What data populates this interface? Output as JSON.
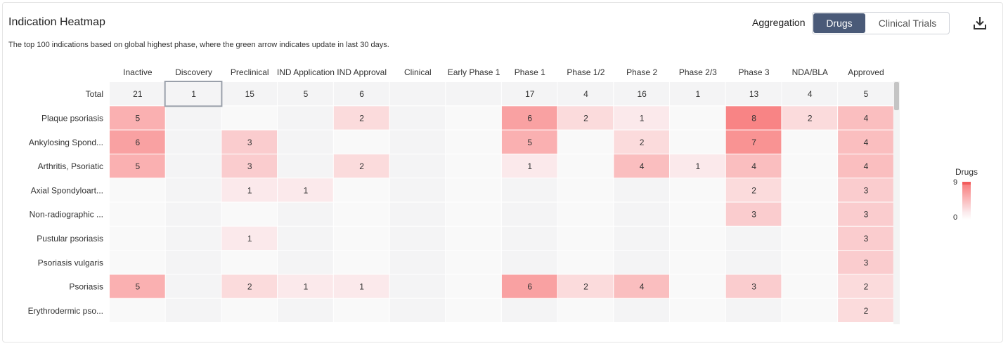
{
  "header": {
    "title": "Indication Heatmap",
    "subtitle": "The top 100 indications based on global highest phase, where the green arrow indicates update in last 30 days.",
    "aggregation_label": "Aggregation",
    "toggle": {
      "drugs": "Drugs",
      "trials": "Clinical Trials",
      "selected": "Drugs"
    },
    "download_icon": "download-icon"
  },
  "legend": {
    "title": "Drugs",
    "max": "9",
    "min": "0"
  },
  "colors": {
    "high": "#f87676",
    "low": "#fbe9eb",
    "empty_a": "#f4f4f5",
    "empty_b": "#f9f9f9",
    "accent": "#4a5a78"
  },
  "chart_data": {
    "type": "heatmap",
    "title": "Indication Heatmap",
    "columns": [
      "Inactive",
      "Discovery",
      "Preclinical",
      "IND Application",
      "IND Approval",
      "Clinical",
      "Early Phase 1",
      "Phase 1",
      "Phase 1/2",
      "Phase 2",
      "Phase 2/3",
      "Phase 3",
      "NDA/BLA",
      "Approved"
    ],
    "rows": [
      "Total",
      "Plaque psoriasis",
      "Ankylosing Spond...",
      "Arthritis, Psoriatic",
      "Axial Spondyloart...",
      "Non-radiographic ...",
      "Pustular psoriasis",
      "Psoriasis vulgaris",
      "Psoriasis",
      "Erythrodermic pso..."
    ],
    "values": [
      [
        21,
        1,
        15,
        5,
        6,
        null,
        null,
        17,
        4,
        16,
        1,
        13,
        4,
        5
      ],
      [
        5,
        null,
        null,
        null,
        2,
        null,
        null,
        6,
        2,
        1,
        null,
        8,
        2,
        4
      ],
      [
        6,
        null,
        3,
        null,
        null,
        null,
        null,
        5,
        null,
        2,
        null,
        7,
        null,
        4
      ],
      [
        5,
        null,
        3,
        null,
        2,
        null,
        null,
        1,
        null,
        4,
        1,
        4,
        null,
        4
      ],
      [
        null,
        null,
        1,
        1,
        null,
        null,
        null,
        null,
        null,
        null,
        null,
        2,
        null,
        3
      ],
      [
        null,
        null,
        null,
        null,
        null,
        null,
        null,
        null,
        null,
        null,
        null,
        3,
        null,
        3
      ],
      [
        null,
        null,
        1,
        null,
        null,
        null,
        null,
        null,
        null,
        null,
        null,
        null,
        null,
        3
      ],
      [
        null,
        null,
        null,
        null,
        null,
        null,
        null,
        null,
        null,
        null,
        null,
        null,
        null,
        3
      ],
      [
        5,
        null,
        2,
        1,
        1,
        null,
        null,
        6,
        2,
        4,
        null,
        3,
        null,
        2
      ],
      [
        null,
        null,
        null,
        null,
        null,
        null,
        null,
        null,
        null,
        null,
        null,
        null,
        null,
        2
      ]
    ],
    "color_range": [
      0,
      9
    ],
    "selected_cell": {
      "row": "Total",
      "column": "Discovery"
    }
  }
}
